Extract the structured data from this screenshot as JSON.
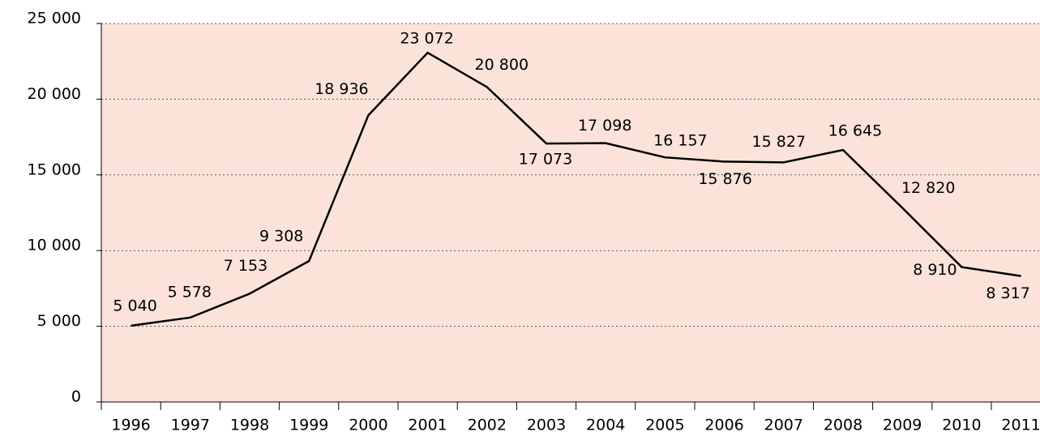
{
  "chart_data": {
    "type": "line",
    "categories": [
      "1996",
      "1997",
      "1998",
      "1999",
      "2000",
      "2001",
      "2002",
      "2003",
      "2004",
      "2005",
      "2006",
      "2007",
      "2008",
      "2009",
      "2010",
      "2011"
    ],
    "series": [
      {
        "color": "#000000",
        "values": [
          5040,
          5578,
          7153,
          9308,
          18936,
          23072,
          20800,
          17073,
          17098,
          16157,
          15876,
          15827,
          16645,
          12820,
          8910,
          8317
        ],
        "value_labels": [
          "5 040",
          "5 578",
          "7 153",
          "9 308",
          "18 936",
          "23 072",
          "20 800",
          "17 073",
          "17 098",
          "16 157",
          "15 876",
          "15 827",
          "16 645",
          "12 820",
          "8 910",
          "8 317"
        ]
      }
    ],
    "ylim": [
      0,
      25000
    ],
    "yticks": [
      0,
      {
        "value": 5000,
        "label": "5 000"
      },
      {
        "value": 10000,
        "label": "10 000"
      },
      {
        "value": 15000,
        "label": "15 000"
      },
      {
        "value": 20000,
        "label": "20 000"
      },
      {
        "value": 25000,
        "label": "25 000"
      }
    ],
    "grid": true,
    "background": "#fbe3da"
  }
}
